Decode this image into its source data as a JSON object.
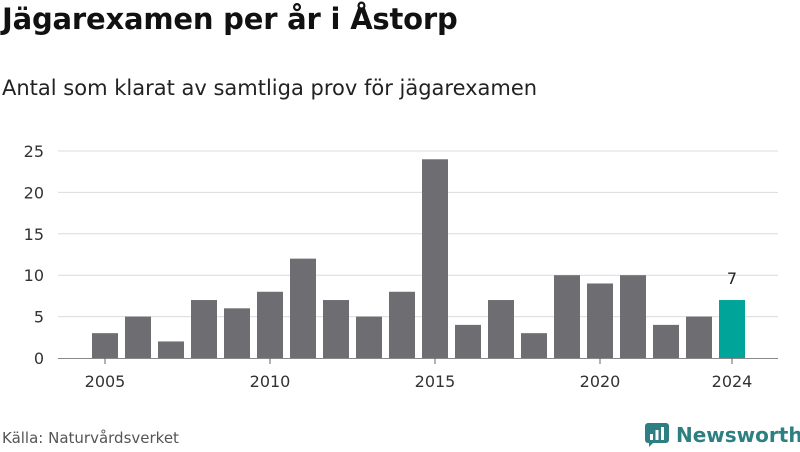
{
  "title": "Jägarexamen per år i Åstorp",
  "subtitle": "Antal som klarat av samtliga prov för jägarexamen",
  "source": "Källa: Naturvårdsverket",
  "brand": {
    "name": "Newsworthy",
    "icon": "newsworthy-logo-icon",
    "color": "#2e7f82"
  },
  "colors": {
    "bar": "#6e6d72",
    "highlight": "#00a499",
    "grid": "#dcdcdc"
  },
  "chart_data": {
    "type": "bar",
    "title": "Jägarexamen per år i Åstorp",
    "subtitle": "Antal som klarat av samtliga prov för jägarexamen",
    "categories": [
      2005,
      2006,
      2007,
      2008,
      2009,
      2010,
      2011,
      2012,
      2013,
      2014,
      2015,
      2016,
      2017,
      2018,
      2019,
      2020,
      2021,
      2022,
      2023,
      2024
    ],
    "values": [
      3,
      5,
      2,
      7,
      6,
      8,
      12,
      7,
      5,
      8,
      24,
      4,
      7,
      3,
      10,
      9,
      10,
      4,
      5,
      7
    ],
    "ylim": [
      0,
      25
    ],
    "yticks": [
      0,
      5,
      10,
      15,
      20,
      25
    ],
    "xticks": [
      2005,
      2010,
      2015,
      2020,
      2024
    ],
    "highlight_category": 2024,
    "data_labels": [
      {
        "category": 2024,
        "text": "7"
      }
    ],
    "grid": true,
    "xlabel": "",
    "ylabel": ""
  }
}
